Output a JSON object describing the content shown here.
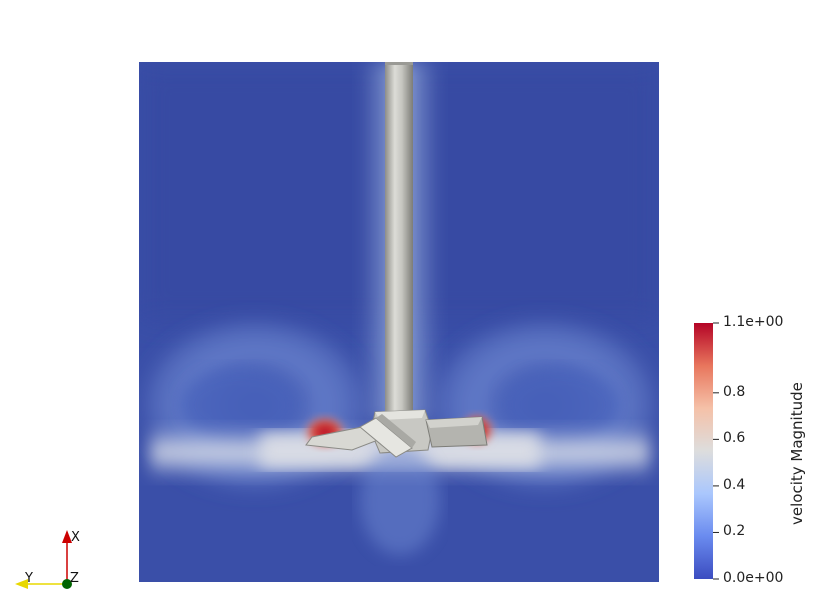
{
  "colorbar": {
    "title": "velocity Magnitude",
    "min": 0.0,
    "max": 1.1,
    "colors": [
      "#3b4cc0",
      "#6a8bef",
      "#aac7fd",
      "#dddddd",
      "#f5c1a8",
      "#e8765d",
      "#b40426"
    ],
    "tick_labels": [
      {
        "value": 1.1,
        "text": "1.1e+00"
      },
      {
        "value": 0.8,
        "text": "0.8"
      },
      {
        "value": 0.6,
        "text": "0.6"
      },
      {
        "value": 0.4,
        "text": "0.4"
      },
      {
        "value": 0.2,
        "text": "0.2"
      },
      {
        "value": 0.0,
        "text": "0.0e+00"
      }
    ]
  },
  "axes_triad": {
    "x_label": "X",
    "y_label": "Y",
    "z_label": "Z"
  },
  "colors": {
    "field_background": "#3a4fa8",
    "impeller_body": "#c8c8c3",
    "axis_x": "#cc0000",
    "axis_y": "#e8d800",
    "axis_z": "#006400"
  }
}
